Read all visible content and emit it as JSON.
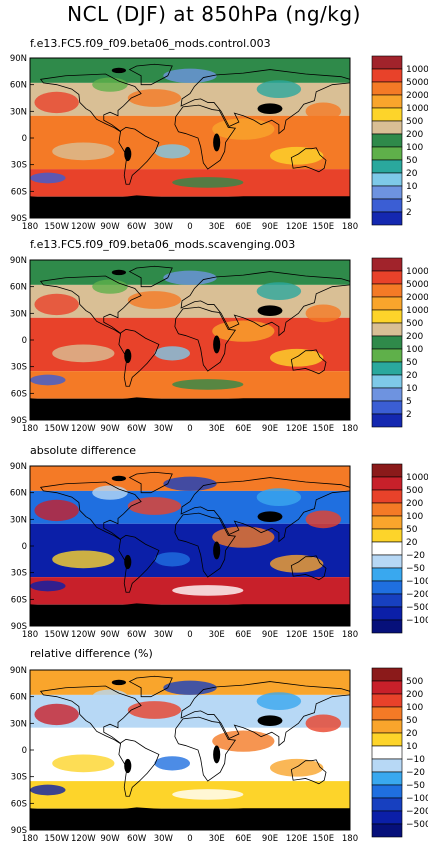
{
  "title": "NCL (DJF) at 850hPa (ng/kg)",
  "chart_data": [
    {
      "type": "heatmap",
      "subtitle": "f.e13.FC5.f09_f09.beta06_mods.control.003",
      "x_ticks": [
        "180",
        "150W",
        "120W",
        "90W",
        "60W",
        "30W",
        "0",
        "30E",
        "60E",
        "90E",
        "120E",
        "150E",
        "180"
      ],
      "y_ticks": [
        "90N",
        "60N",
        "30N",
        "0",
        "30S",
        "60S",
        "90S"
      ],
      "xlim": [
        -180,
        180
      ],
      "ylim": [
        -90,
        90
      ],
      "colorbar": {
        "labels": [
          "10000",
          "5000",
          "2000",
          "1000",
          "500",
          "200",
          "100",
          "50",
          "20",
          "10",
          "5",
          "2"
        ],
        "colors": [
          "#a1232b",
          "#e8422a",
          "#f47a26",
          "#f9a52c",
          "#fdd42a",
          "#d9bf95",
          "#2f8a4a",
          "#5fb04a",
          "#2aa89d",
          "#7ec9e8",
          "#6e93e0",
          "#3b5ed4",
          "#1428b0"
        ]
      }
    },
    {
      "type": "heatmap",
      "subtitle": "f.e13.FC5.f09_f09.beta06_mods.scavenging.003",
      "x_ticks": [
        "180",
        "150W",
        "120W",
        "90W",
        "60W",
        "30W",
        "0",
        "30E",
        "60E",
        "90E",
        "120E",
        "150E",
        "180"
      ],
      "y_ticks": [
        "90N",
        "60N",
        "30N",
        "0",
        "30S",
        "60S",
        "90S"
      ],
      "xlim": [
        -180,
        180
      ],
      "ylim": [
        -90,
        90
      ],
      "colorbar": {
        "labels": [
          "10000",
          "5000",
          "2000",
          "1000",
          "500",
          "200",
          "100",
          "50",
          "20",
          "10",
          "5",
          "2"
        ],
        "colors": [
          "#a1232b",
          "#e8422a",
          "#f47a26",
          "#f9a52c",
          "#fdd42a",
          "#d9bf95",
          "#2f8a4a",
          "#5fb04a",
          "#2aa89d",
          "#7ec9e8",
          "#6e93e0",
          "#3b5ed4",
          "#1428b0"
        ]
      }
    },
    {
      "type": "heatmap",
      "subtitle": "absolute difference",
      "x_ticks": [
        "180",
        "150W",
        "120W",
        "90W",
        "60W",
        "30W",
        "0",
        "30E",
        "60E",
        "90E",
        "120E",
        "150E",
        "180"
      ],
      "y_ticks": [
        "90N",
        "60N",
        "30N",
        "0",
        "30S",
        "60S",
        "90S"
      ],
      "xlim": [
        -180,
        180
      ],
      "ylim": [
        -90,
        90
      ],
      "colorbar": {
        "labels": [
          "1000",
          "500",
          "200",
          "100",
          "50",
          "20",
          "−20",
          "−50",
          "−100",
          "−200",
          "−500",
          "−1000"
        ],
        "colors": [
          "#8b1a1a",
          "#c8202a",
          "#e8422a",
          "#f47a26",
          "#f9a52c",
          "#fdd42a",
          "#ffffff",
          "#b7d8f5",
          "#39a8ef",
          "#1f6fe0",
          "#1740c0",
          "#0b1fa8",
          "#06107a"
        ]
      }
    },
    {
      "type": "heatmap",
      "subtitle": "relative difference (%)",
      "x_ticks": [
        "180",
        "150W",
        "120W",
        "90W",
        "60W",
        "30W",
        "0",
        "30E",
        "60E",
        "90E",
        "120E",
        "150E",
        "180"
      ],
      "y_ticks": [
        "90N",
        "60N",
        "30N",
        "0",
        "30S",
        "60S",
        "90S"
      ],
      "xlim": [
        -180,
        180
      ],
      "ylim": [
        -90,
        90
      ],
      "colorbar": {
        "labels": [
          "500",
          "200",
          "100",
          "50",
          "20",
          "10",
          "−10",
          "−20",
          "−50",
          "−100",
          "−200",
          "−500"
        ],
        "colors": [
          "#8b1a1a",
          "#c8202a",
          "#e8422a",
          "#f47a26",
          "#f9a52c",
          "#fdd42a",
          "#ffffff",
          "#b7d8f5",
          "#39a8ef",
          "#1f6fe0",
          "#1740c0",
          "#0b1fa8",
          "#06107a"
        ]
      }
    }
  ],
  "map_fill": {
    "regions": [
      "arctic",
      "nh-land",
      "tropics",
      "southern-ocean",
      "antarctica"
    ],
    "panel_colors": [
      [
        "#2f8a4a",
        "#d9bf95",
        "#f47a26",
        "#e8422a",
        "#000000"
      ],
      [
        "#2f8a4a",
        "#d9bf95",
        "#e8422a",
        "#f47a26",
        "#000000"
      ],
      [
        "#f47a26",
        "#1f6fe0",
        "#0b1fa8",
        "#c8202a",
        "#000000"
      ],
      [
        "#f9a52c",
        "#b7d8f5",
        "#ffffff",
        "#fdd42a",
        "#000000"
      ]
    ]
  }
}
